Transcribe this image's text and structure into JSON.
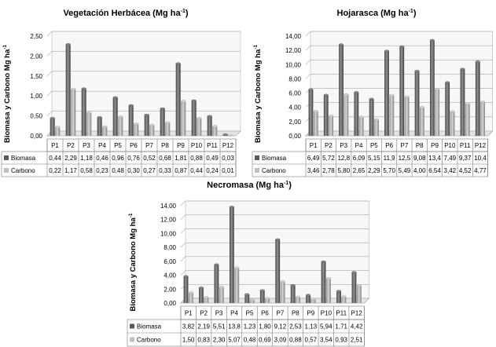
{
  "chart_data": [
    {
      "type": "bar",
      "title": "Vegetación Herbácea (Mg ha",
      "title_sup": "-1",
      "title_end": ")",
      "ylabel": "Biomasa y Carbono Mg ha",
      "ylabel_sup": "-1",
      "ylim": [
        0,
        2.5
      ],
      "yticks": [
        "0,00",
        "0,50",
        "1,00",
        "1,50",
        "2,00",
        "2,50"
      ],
      "categories": [
        "P1",
        "P2",
        "P3",
        "P4",
        "P5",
        "P6",
        "P7",
        "P8",
        "P9",
        "P10",
        "P11",
        "P12"
      ],
      "series": [
        {
          "name": "Biomasa",
          "color": "#595959",
          "values": [
            0.44,
            2.29,
            1.18,
            0.46,
            0.96,
            0.76,
            0.52,
            0.68,
            1.81,
            0.88,
            0.49,
            0.03
          ],
          "labels": [
            "0,44",
            "2,29",
            "1,18",
            "0,46",
            "0,96",
            "0,76",
            "0,52",
            "0,68",
            "1,81",
            "0,88",
            "0,49",
            "0,03"
          ]
        },
        {
          "name": "Carbono",
          "color": "#c0c0c0",
          "values": [
            0.22,
            1.17,
            0.58,
            0.23,
            0.48,
            0.3,
            0.27,
            0.33,
            0.87,
            0.44,
            0.24,
            0.01
          ],
          "labels": [
            "0,22",
            "1,17",
            "0,58",
            "0,23",
            "0,48",
            "0,30",
            "0,27",
            "0,33",
            "0,87",
            "0,44",
            "0,24",
            "0,01"
          ]
        }
      ]
    },
    {
      "type": "bar",
      "title": "Hojarasca (Mg ha",
      "title_sup": "-1",
      "title_end": ")",
      "ylabel": "Biomasa y Carbono Mg ha",
      "ylabel_sup": "-1",
      "ylim": [
        0,
        14
      ],
      "yticks": [
        "0,00",
        "2,00",
        "4,00",
        "6,00",
        "8,00",
        "10,00",
        "12,00",
        "14,00"
      ],
      "categories": [
        "P1",
        "P2",
        "P3",
        "P4",
        "P5",
        "P6",
        "P7",
        "P8",
        "P9",
        "P10",
        "P11",
        "P12"
      ],
      "series": [
        {
          "name": "Biomasa",
          "color": "#595959",
          "values": [
            6.49,
            5.72,
            12.8,
            6.09,
            5.15,
            11.9,
            12.5,
            9.08,
            13.4,
            7.49,
            9.37,
            10.4
          ],
          "labels": [
            "6,49",
            "5,72",
            "12,8",
            "6,09",
            "5,15",
            "11,9",
            "12,5",
            "9,08",
            "13,4",
            "7,49",
            "9,37",
            "10,4"
          ]
        },
        {
          "name": "Carbono",
          "color": "#c0c0c0",
          "values": [
            3.46,
            2.78,
            5.8,
            2.65,
            2.29,
            5.7,
            5.49,
            4.0,
            6.54,
            3.42,
            4.52,
            4.77
          ],
          "labels": [
            "3,46",
            "2,78",
            "5,80",
            "2,65",
            "2,29",
            "5,70",
            "5,49",
            "4,00",
            "6,54",
            "3,42",
            "4,52",
            "4,77"
          ]
        }
      ]
    },
    {
      "type": "bar",
      "title": "Necromasa (Mg ha",
      "title_sup": "-1",
      "title_end": ")",
      "ylabel": "Biomasa y Carbono Mg ha",
      "ylabel_sup": "-1",
      "ylim": [
        0,
        14
      ],
      "yticks": [
        "0,00",
        "2,00",
        "4,00",
        "6,00",
        "8,00",
        "10,00",
        "12,00",
        "14,00"
      ],
      "categories": [
        "P1",
        "P2",
        "P3",
        "P4",
        "P5",
        "P6",
        "P7",
        "P8",
        "P9",
        "P10",
        "P11",
        "P12"
      ],
      "series": [
        {
          "name": "Biomasa",
          "color": "#595959",
          "values": [
            3.82,
            2.19,
            5.51,
            13.8,
            1.23,
            1.8,
            9.12,
            2.53,
            1.13,
            5.94,
            1.71,
            4.42
          ],
          "labels": [
            "3,82",
            "2,19",
            "5,51",
            "13,8",
            "1,23",
            "1,80",
            "9,12",
            "2,53",
            "1,13",
            "5,94",
            "1,71",
            "4,42"
          ]
        },
        {
          "name": "Carbono",
          "color": "#c0c0c0",
          "values": [
            1.5,
            0.83,
            2.3,
            5.07,
            0.48,
            0.69,
            3.09,
            0.88,
            0.57,
            3.54,
            0.93,
            2.51
          ],
          "labels": [
            "1,50",
            "0,83",
            "2,30",
            "5,07",
            "0,48",
            "0,69",
            "3,09",
            "0,88",
            "0,57",
            "3,54",
            "0,93",
            "2,51"
          ]
        }
      ]
    }
  ]
}
